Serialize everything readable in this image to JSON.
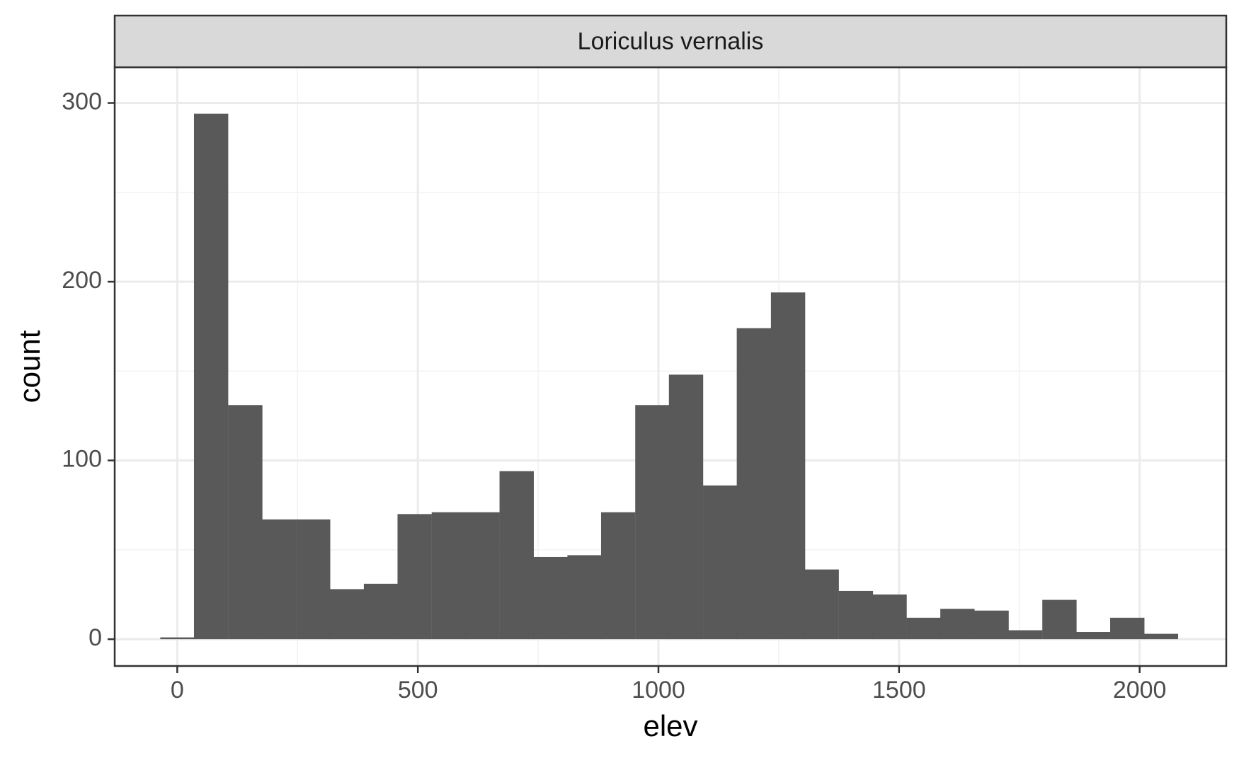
{
  "chart_data": {
    "type": "bar",
    "subtype": "histogram",
    "facet_label": "Loriculus vernalis",
    "xlabel": "elev",
    "ylabel": "count",
    "xlim": [
      -130,
      2180
    ],
    "ylim": [
      -15,
      320
    ],
    "x_ticks": [
      0,
      500,
      1000,
      1500,
      2000
    ],
    "x_tick_labels": [
      "0",
      "500",
      "1000",
      "1500",
      "2000"
    ],
    "y_ticks": [
      0,
      100,
      200,
      300
    ],
    "y_tick_labels": [
      "0",
      "100",
      "200",
      "300"
    ],
    "x_minor_ticks": [
      250,
      750,
      1250,
      1750
    ],
    "y_minor_ticks": [
      50,
      150,
      250
    ],
    "grid": true,
    "theme": "bw",
    "bin_width": 70.5,
    "bins": [
      {
        "x": 0,
        "count": 1
      },
      {
        "x": 70,
        "count": 294
      },
      {
        "x": 141,
        "count": 131
      },
      {
        "x": 211,
        "count": 67
      },
      {
        "x": 282,
        "count": 67
      },
      {
        "x": 352,
        "count": 28
      },
      {
        "x": 423,
        "count": 31
      },
      {
        "x": 493,
        "count": 70
      },
      {
        "x": 564,
        "count": 71
      },
      {
        "x": 634,
        "count": 71
      },
      {
        "x": 705,
        "count": 94
      },
      {
        "x": 775,
        "count": 46
      },
      {
        "x": 846,
        "count": 47
      },
      {
        "x": 916,
        "count": 71
      },
      {
        "x": 987,
        "count": 131
      },
      {
        "x": 1057,
        "count": 148
      },
      {
        "x": 1128,
        "count": 86
      },
      {
        "x": 1198,
        "count": 174
      },
      {
        "x": 1269,
        "count": 194
      },
      {
        "x": 1339,
        "count": 39
      },
      {
        "x": 1410,
        "count": 27
      },
      {
        "x": 1480,
        "count": 25
      },
      {
        "x": 1551,
        "count": 12
      },
      {
        "x": 1621,
        "count": 17
      },
      {
        "x": 1692,
        "count": 16
      },
      {
        "x": 1762,
        "count": 5
      },
      {
        "x": 1833,
        "count": 22
      },
      {
        "x": 1903,
        "count": 4
      },
      {
        "x": 1974,
        "count": 12
      },
      {
        "x": 2044,
        "count": 3
      }
    ],
    "colors": {
      "bar_fill": "#595959",
      "panel_border": "#333333",
      "grid_major": "#ebebeb",
      "grid_minor": "#f3f3f3",
      "strip_fill": "#d9d9d9",
      "tick_text": "#4d4d4d"
    }
  }
}
